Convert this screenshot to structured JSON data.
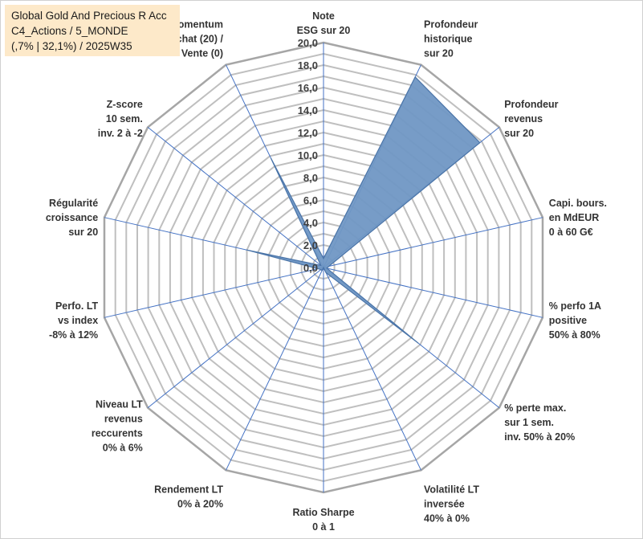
{
  "title": {
    "line1": "Global Gold And Precious R Acc",
    "line2": "C4_Actions / 5_MONDE",
    "line3": "(,7% | 32,1%) / 2025W35"
  },
  "chart_data": {
    "type": "radar",
    "rmin": 0,
    "rmax": 20,
    "tick_step": 1,
    "tick_labels": [
      "0,0",
      "2,0",
      "4,0",
      "6,0",
      "8,0",
      "10,0",
      "12,0",
      "14,0",
      "16,0",
      "18,0",
      "20,0"
    ],
    "axes": [
      [
        "Note",
        "ESG sur 20"
      ],
      [
        "Profondeur",
        "historique",
        "sur 20"
      ],
      [
        "Profondeur",
        "revenus",
        "sur 20"
      ],
      [
        "Capi. bours.",
        "en MdEUR",
        "0 à 60 G€"
      ],
      [
        "% perfo 1A",
        "positive",
        "50% à 80%"
      ],
      [
        "% perte max.",
        "sur 1 sem.",
        "inv. 50% à 20%"
      ],
      [
        "Volatilité LT",
        "inversée",
        "40% à 0%"
      ],
      [
        "Ratio Sharpe",
        "0 à 1"
      ],
      [
        "Rendement LT",
        "0% à 20%"
      ],
      [
        "Niveau LT",
        "revenus",
        "reccurents",
        "0% à 6%"
      ],
      [
        "Perfo. LT",
        "vs index",
        "-8% à 12%"
      ],
      [
        "Régularité",
        "croissance",
        "sur 20"
      ],
      [
        "Z-score",
        "10 sem.",
        "inv. 2 à -2"
      ],
      [
        "Momentum",
        "Achat (20) /",
        "Vente (0)"
      ]
    ],
    "series": [
      {
        "values": [
          0.8,
          18.8,
          17.8,
          0.5,
          0.3,
          10.8,
          0.5,
          0.0,
          0.3,
          0.3,
          0.5,
          7.0,
          0.3,
          10.8
        ],
        "fill": "#7097c4",
        "stroke": "#4a74a8"
      }
    ],
    "grid_color": "#bfbfbf",
    "outer_ring_color": "#a6a6a6",
    "spoke_color": "#4472c4"
  }
}
